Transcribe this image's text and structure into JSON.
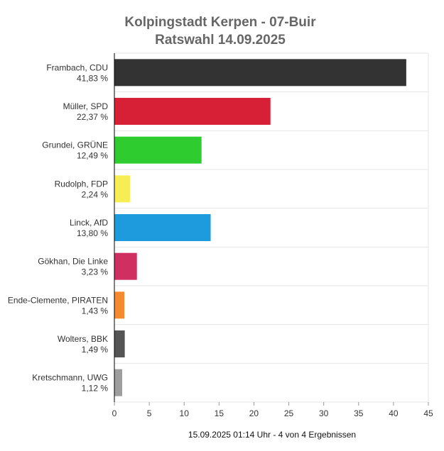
{
  "chart_data": {
    "type": "bar",
    "orientation": "horizontal",
    "title": "Kolpingstadt Kerpen - 07-Buir",
    "subtitle": "Ratswahl 14.09.2025",
    "footer": "15.09.2025 01:14 Uhr - 4 von 4 Ergebnissen",
    "xlim": [
      0,
      45
    ],
    "x_ticks": [
      "0",
      "5",
      "10",
      "15",
      "20",
      "25",
      "30",
      "35",
      "40",
      "45"
    ],
    "grid": true,
    "legend": "none",
    "categories": [
      {
        "name": "Frambach, CDU",
        "value_label": "41,83 %",
        "value": 41.83,
        "color": "#333333"
      },
      {
        "name": "Müller, SPD",
        "value_label": "22,37 %",
        "value": 22.37,
        "color": "#d71f36"
      },
      {
        "name": "Grundei, GRÜNE",
        "value_label": "12,49 %",
        "value": 12.49,
        "color": "#2ecc2e"
      },
      {
        "name": "Rudolph, FDP",
        "value_label": "2,24 %",
        "value": 2.24,
        "color": "#f7ee55"
      },
      {
        "name": "Linck, AfD",
        "value_label": "13,80 %",
        "value": 13.8,
        "color": "#1e9bdc"
      },
      {
        "name": "Gökhan, Die Linke",
        "value_label": "3,23 %",
        "value": 3.23,
        "color": "#cf2f61"
      },
      {
        "name": "Ende-Clemente, PIRATEN",
        "value_label": "1,43 %",
        "value": 1.43,
        "color": "#f58a31"
      },
      {
        "name": "Wolters, BBK",
        "value_label": "1,49 %",
        "value": 1.49,
        "color": "#555555"
      },
      {
        "name": "Kretschmann, UWG",
        "value_label": "1,12 %",
        "value": 1.12,
        "color": "#9e9e9e"
      }
    ]
  }
}
